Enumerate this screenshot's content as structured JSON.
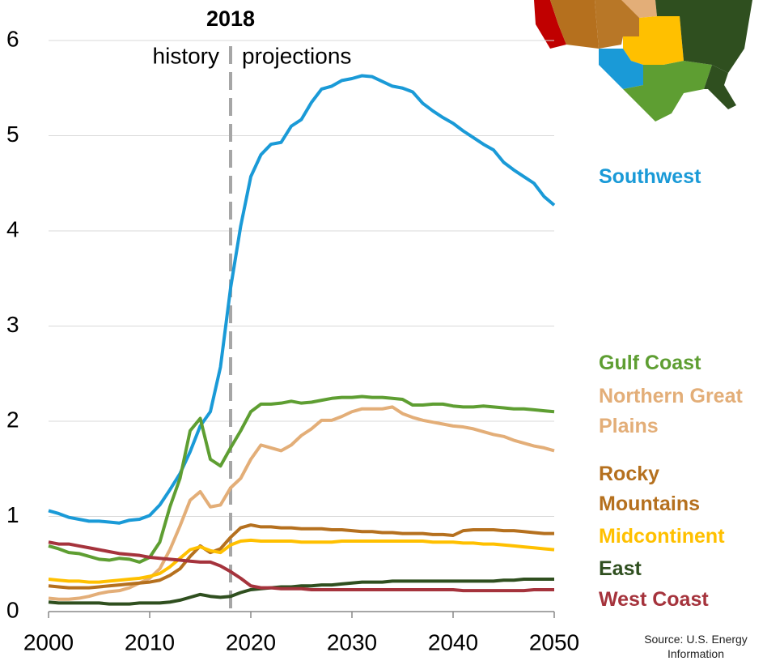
{
  "chart_data": {
    "type": "line",
    "x": [
      2000,
      2001,
      2002,
      2003,
      2004,
      2005,
      2006,
      2007,
      2008,
      2009,
      2010,
      2011,
      2012,
      2013,
      2014,
      2015,
      2016,
      2017,
      2018,
      2019,
      2020,
      2021,
      2022,
      2023,
      2024,
      2025,
      2026,
      2027,
      2028,
      2029,
      2030,
      2031,
      2032,
      2033,
      2034,
      2035,
      2036,
      2037,
      2038,
      2039,
      2040,
      2041,
      2042,
      2043,
      2044,
      2045,
      2046,
      2047,
      2048,
      2049,
      2050
    ],
    "xlim": [
      2000,
      2050
    ],
    "xticks": [
      2000,
      2010,
      2020,
      2030,
      2040,
      2050
    ],
    "ylim": [
      0,
      6
    ],
    "yticks": [
      0,
      1,
      2,
      3,
      4,
      5,
      6
    ],
    "grid": true,
    "divider": 2018,
    "history_label": "history",
    "projections_label": "projections",
    "source": "Source: U.S. Energy Information",
    "series": [
      {
        "name": "Southwest",
        "color": "#1a9ad7",
        "values": [
          1.06,
          1.03,
          0.99,
          0.97,
          0.95,
          0.95,
          0.94,
          0.93,
          0.96,
          0.97,
          1.01,
          1.12,
          1.28,
          1.45,
          1.68,
          1.95,
          2.1,
          2.57,
          3.4,
          4.05,
          4.57,
          4.8,
          4.91,
          4.93,
          5.1,
          5.17,
          5.35,
          5.49,
          5.52,
          5.58,
          5.6,
          5.63,
          5.62,
          5.57,
          5.52,
          5.5,
          5.46,
          5.34,
          5.26,
          5.19,
          5.13,
          5.05,
          4.98,
          4.91,
          4.85,
          4.72,
          4.64,
          4.57,
          4.5,
          4.36,
          4.27
        ]
      },
      {
        "name": "Gulf Coast",
        "color": "#5e9e32",
        "values": [
          0.69,
          0.66,
          0.62,
          0.61,
          0.58,
          0.55,
          0.54,
          0.56,
          0.55,
          0.52,
          0.57,
          0.73,
          1.1,
          1.4,
          1.9,
          2.03,
          1.6,
          1.53,
          1.72,
          1.9,
          2.1,
          2.18,
          2.18,
          2.19,
          2.21,
          2.19,
          2.2,
          2.22,
          2.24,
          2.25,
          2.25,
          2.26,
          2.25,
          2.25,
          2.24,
          2.23,
          2.17,
          2.17,
          2.18,
          2.18,
          2.16,
          2.15,
          2.15,
          2.16,
          2.15,
          2.14,
          2.13,
          2.13,
          2.12,
          2.11,
          2.1
        ]
      },
      {
        "name": "Northern Great Plains",
        "color": "#e3ae78",
        "values": [
          0.14,
          0.13,
          0.13,
          0.14,
          0.16,
          0.19,
          0.21,
          0.22,
          0.25,
          0.3,
          0.35,
          0.45,
          0.65,
          0.9,
          1.17,
          1.26,
          1.1,
          1.12,
          1.3,
          1.4,
          1.6,
          1.75,
          1.72,
          1.69,
          1.75,
          1.85,
          1.92,
          2.01,
          2.01,
          2.05,
          2.1,
          2.13,
          2.13,
          2.13,
          2.15,
          2.08,
          2.04,
          2.01,
          1.99,
          1.97,
          1.95,
          1.94,
          1.92,
          1.89,
          1.86,
          1.84,
          1.8,
          1.77,
          1.74,
          1.72,
          1.69
        ]
      },
      {
        "name": "Rocky Mountains",
        "color": "#b5701e",
        "values": [
          0.27,
          0.26,
          0.25,
          0.25,
          0.25,
          0.26,
          0.27,
          0.28,
          0.29,
          0.3,
          0.31,
          0.33,
          0.38,
          0.45,
          0.58,
          0.69,
          0.62,
          0.66,
          0.78,
          0.88,
          0.91,
          0.89,
          0.89,
          0.88,
          0.88,
          0.87,
          0.87,
          0.87,
          0.86,
          0.86,
          0.85,
          0.84,
          0.84,
          0.83,
          0.83,
          0.82,
          0.82,
          0.82,
          0.81,
          0.81,
          0.8,
          0.85,
          0.86,
          0.86,
          0.86,
          0.85,
          0.85,
          0.84,
          0.83,
          0.82,
          0.82
        ]
      },
      {
        "name": "Midcontinent",
        "color": "#ffc000",
        "values": [
          0.34,
          0.33,
          0.32,
          0.32,
          0.31,
          0.31,
          0.32,
          0.33,
          0.34,
          0.35,
          0.37,
          0.4,
          0.47,
          0.56,
          0.65,
          0.68,
          0.64,
          0.62,
          0.7,
          0.74,
          0.75,
          0.74,
          0.74,
          0.74,
          0.74,
          0.73,
          0.73,
          0.73,
          0.73,
          0.74,
          0.74,
          0.74,
          0.74,
          0.74,
          0.74,
          0.74,
          0.74,
          0.74,
          0.73,
          0.73,
          0.73,
          0.72,
          0.72,
          0.71,
          0.71,
          0.7,
          0.69,
          0.68,
          0.67,
          0.66,
          0.65
        ]
      },
      {
        "name": "East",
        "color": "#2f4f1f",
        "values": [
          0.1,
          0.09,
          0.09,
          0.09,
          0.09,
          0.09,
          0.08,
          0.08,
          0.08,
          0.09,
          0.09,
          0.09,
          0.1,
          0.12,
          0.15,
          0.18,
          0.16,
          0.15,
          0.16,
          0.2,
          0.23,
          0.24,
          0.25,
          0.26,
          0.26,
          0.27,
          0.27,
          0.28,
          0.28,
          0.29,
          0.3,
          0.31,
          0.31,
          0.31,
          0.32,
          0.32,
          0.32,
          0.32,
          0.32,
          0.32,
          0.32,
          0.32,
          0.32,
          0.32,
          0.32,
          0.33,
          0.33,
          0.34,
          0.34,
          0.34,
          0.34
        ]
      },
      {
        "name": "West Coast",
        "color": "#a5333c",
        "values": [
          0.73,
          0.71,
          0.71,
          0.69,
          0.67,
          0.65,
          0.63,
          0.61,
          0.6,
          0.59,
          0.57,
          0.56,
          0.55,
          0.54,
          0.53,
          0.52,
          0.52,
          0.48,
          0.42,
          0.35,
          0.27,
          0.25,
          0.25,
          0.24,
          0.24,
          0.24,
          0.23,
          0.23,
          0.23,
          0.23,
          0.23,
          0.23,
          0.23,
          0.23,
          0.23,
          0.23,
          0.23,
          0.23,
          0.23,
          0.23,
          0.23,
          0.22,
          0.22,
          0.22,
          0.22,
          0.22,
          0.22,
          0.22,
          0.23,
          0.23,
          0.23
        ]
      }
    ]
  }
}
